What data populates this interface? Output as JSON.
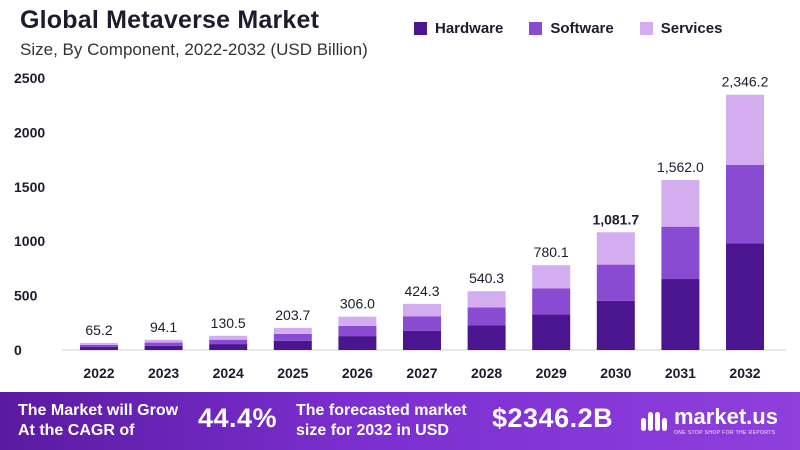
{
  "header": {
    "title": "Global Metaverse Market",
    "subtitle": "Size, By Component, 2022-2032 (USD Billion)"
  },
  "legend": [
    {
      "label": "Hardware",
      "color": "#4b1590"
    },
    {
      "label": "Software",
      "color": "#8a4bd3"
    },
    {
      "label": "Services",
      "color": "#d3adf0"
    }
  ],
  "chart_data": {
    "type": "bar",
    "stacked": true,
    "title": "Global Metaverse Market",
    "subtitle": "Size, By Component, 2022-2032 (USD Billion)",
    "categories": [
      "2022",
      "2023",
      "2024",
      "2025",
      "2026",
      "2027",
      "2028",
      "2029",
      "2030",
      "2031",
      "2032"
    ],
    "series": [
      {
        "name": "Hardware",
        "color": "#4b1590",
        "values": [
          27.2,
          39.3,
          54.5,
          85.0,
          127.8,
          177.2,
          225.6,
          325.7,
          451.6,
          652.2,
          979.6
        ]
      },
      {
        "name": "Software",
        "color": "#8a4bd3",
        "values": [
          20.1,
          29.0,
          40.2,
          62.7,
          94.2,
          130.7,
          166.4,
          240.3,
          333.2,
          481.1,
          722.6
        ]
      },
      {
        "name": "Services",
        "color": "#d3adf0",
        "values": [
          17.9,
          25.8,
          35.8,
          56.0,
          84.0,
          116.4,
          148.3,
          214.1,
          296.9,
          428.7,
          644.0
        ]
      }
    ],
    "totals": [
      "65.2",
      "94.1",
      "130.5",
      "203.7",
      "306.0",
      "424.3",
      "540.3",
      "780.1",
      "1,081.7",
      "1,562.0",
      "2,346.2"
    ],
    "highlight_total_index": 8,
    "yticks": [
      "0",
      "500",
      "1000",
      "1500",
      "2000",
      "2500"
    ],
    "ylim": [
      0,
      2500
    ],
    "xlabel": "",
    "ylabel": "",
    "grid": false
  },
  "footer": {
    "grow_label_line1": "The Market will Grow",
    "grow_label_line2": "At the CAGR of",
    "cagr_value": "44.4%",
    "forecast_label_line1": "The forecasted market",
    "forecast_label_line2": "size for 2032 in USD",
    "forecast_value": "$2346.2B",
    "brand_name": "market.us",
    "brand_tagline": "ONE STOP SHOP FOR THE REPORTS"
  }
}
